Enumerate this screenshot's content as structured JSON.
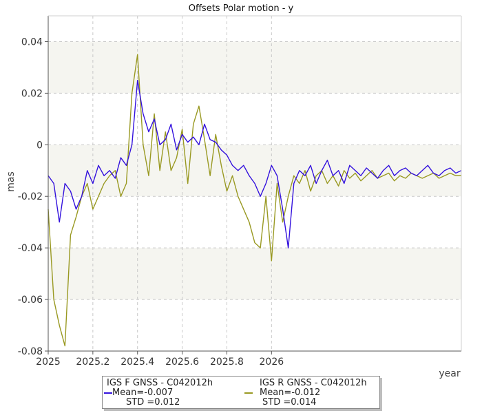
{
  "chart_data": {
    "type": "line",
    "title": "Offsets Polar motion - y",
    "xlabel": "year",
    "ylabel": "mas",
    "xlim": [
      2025,
      2026.85
    ],
    "ylim": [
      -0.08,
      0.05
    ],
    "xticks": [
      2025,
      2025.2,
      2025.4,
      2025.6,
      2025.8,
      2026
    ],
    "xtick_labels": [
      "2025",
      "2025.2",
      "2025.4",
      "2025.6",
      "2025.8",
      "2026"
    ],
    "yticks": [
      -0.08,
      -0.06,
      -0.04,
      -0.02,
      0,
      0.02,
      0.04
    ],
    "ytick_labels": [
      "-0.08",
      "-0.06",
      "-0.04",
      "-0.02",
      "0",
      "0.02",
      "0.04"
    ],
    "grid": true,
    "legend_position": "bottom-center",
    "series": [
      {
        "name": "IGS F GNSS - C042012h",
        "color": "#3311dd",
        "mean_label": "Mean=-0.007",
        "std_label": "STD =0.012",
        "x": [
          2025.0,
          2025.025,
          2025.05,
          2025.075,
          2025.1,
          2025.125,
          2025.15,
          2025.175,
          2025.2,
          2025.225,
          2025.25,
          2025.275,
          2025.3,
          2025.325,
          2025.35,
          2025.375,
          2025.4,
          2025.425,
          2025.45,
          2025.475,
          2025.5,
          2025.525,
          2025.55,
          2025.575,
          2025.6,
          2025.625,
          2025.65,
          2025.675,
          2025.7,
          2025.725,
          2025.75,
          2025.775,
          2025.8,
          2025.825,
          2025.85,
          2025.875,
          2025.9,
          2025.925,
          2025.95,
          2025.975,
          2026.0,
          2026.025,
          2026.05,
          2026.075,
          2026.1,
          2026.125,
          2026.15,
          2026.175,
          2026.2,
          2026.225,
          2026.25,
          2026.275,
          2026.3,
          2026.325,
          2026.35,
          2026.375,
          2026.4,
          2026.425,
          2026.45,
          2026.475,
          2026.5,
          2026.525,
          2026.55,
          2026.575,
          2026.6,
          2026.625,
          2026.65,
          2026.675,
          2026.7,
          2026.725,
          2026.75,
          2026.775,
          2026.8,
          2026.825,
          2026.85
        ],
        "y": [
          -0.012,
          -0.015,
          -0.03,
          -0.015,
          -0.018,
          -0.025,
          -0.02,
          -0.01,
          -0.015,
          -0.008,
          -0.012,
          -0.01,
          -0.013,
          -0.005,
          -0.008,
          0.0,
          0.025,
          0.012,
          0.005,
          0.01,
          0.0,
          0.002,
          0.008,
          -0.002,
          0.004,
          0.001,
          0.003,
          0.0,
          0.008,
          0.002,
          0.001,
          -0.002,
          -0.004,
          -0.008,
          -0.01,
          -0.008,
          -0.012,
          -0.015,
          -0.02,
          -0.015,
          -0.008,
          -0.012,
          -0.025,
          -0.04,
          -0.015,
          -0.01,
          -0.012,
          -0.008,
          -0.015,
          -0.01,
          -0.006,
          -0.012,
          -0.01,
          -0.015,
          -0.008,
          -0.01,
          -0.012,
          -0.009,
          -0.011,
          -0.013,
          -0.01,
          -0.008,
          -0.012,
          -0.01,
          -0.009,
          -0.011,
          -0.012,
          -0.01,
          -0.008,
          -0.011,
          -0.012,
          -0.01,
          -0.009,
          -0.011,
          -0.01
        ]
      },
      {
        "name": "IGS R GNSS - C042012h",
        "color": "#999922",
        "mean_label": "Mean=-0.012",
        "std_label": "STD =0.014",
        "x": [
          2025.0,
          2025.025,
          2025.05,
          2025.075,
          2025.1,
          2025.125,
          2025.15,
          2025.175,
          2025.2,
          2025.225,
          2025.25,
          2025.275,
          2025.3,
          2025.325,
          2025.35,
          2025.375,
          2025.4,
          2025.425,
          2025.45,
          2025.475,
          2025.5,
          2025.525,
          2025.55,
          2025.575,
          2025.6,
          2025.625,
          2025.65,
          2025.675,
          2025.7,
          2025.725,
          2025.75,
          2025.775,
          2025.8,
          2025.825,
          2025.85,
          2025.875,
          2025.9,
          2025.925,
          2025.95,
          2025.975,
          2026.0,
          2026.025,
          2026.05,
          2026.075,
          2026.1,
          2026.125,
          2026.15,
          2026.175,
          2026.2,
          2026.225,
          2026.25,
          2026.275,
          2026.3,
          2026.325,
          2026.35,
          2026.375,
          2026.4,
          2026.425,
          2026.45,
          2026.475,
          2026.5,
          2026.525,
          2026.55,
          2026.575,
          2026.6,
          2026.625,
          2026.65,
          2026.675,
          2026.7,
          2026.725,
          2026.75,
          2026.775,
          2026.8,
          2026.825,
          2026.85
        ],
        "y": [
          -0.025,
          -0.06,
          -0.07,
          -0.078,
          -0.035,
          -0.028,
          -0.02,
          -0.015,
          -0.025,
          -0.02,
          -0.015,
          -0.012,
          -0.01,
          -0.02,
          -0.015,
          0.02,
          0.035,
          0.0,
          -0.012,
          0.012,
          -0.01,
          0.005,
          -0.01,
          -0.005,
          0.006,
          -0.015,
          0.008,
          0.015,
          0.002,
          -0.012,
          0.004,
          -0.008,
          -0.018,
          -0.012,
          -0.02,
          -0.025,
          -0.03,
          -0.038,
          -0.04,
          -0.02,
          -0.045,
          -0.015,
          -0.03,
          -0.02,
          -0.012,
          -0.015,
          -0.01,
          -0.018,
          -0.012,
          -0.01,
          -0.015,
          -0.012,
          -0.016,
          -0.01,
          -0.013,
          -0.011,
          -0.014,
          -0.012,
          -0.01,
          -0.013,
          -0.012,
          -0.011,
          -0.014,
          -0.012,
          -0.013,
          -0.011,
          -0.012,
          -0.013,
          -0.012,
          -0.011,
          -0.013,
          -0.012,
          -0.011,
          -0.012,
          -0.012
        ]
      }
    ]
  }
}
